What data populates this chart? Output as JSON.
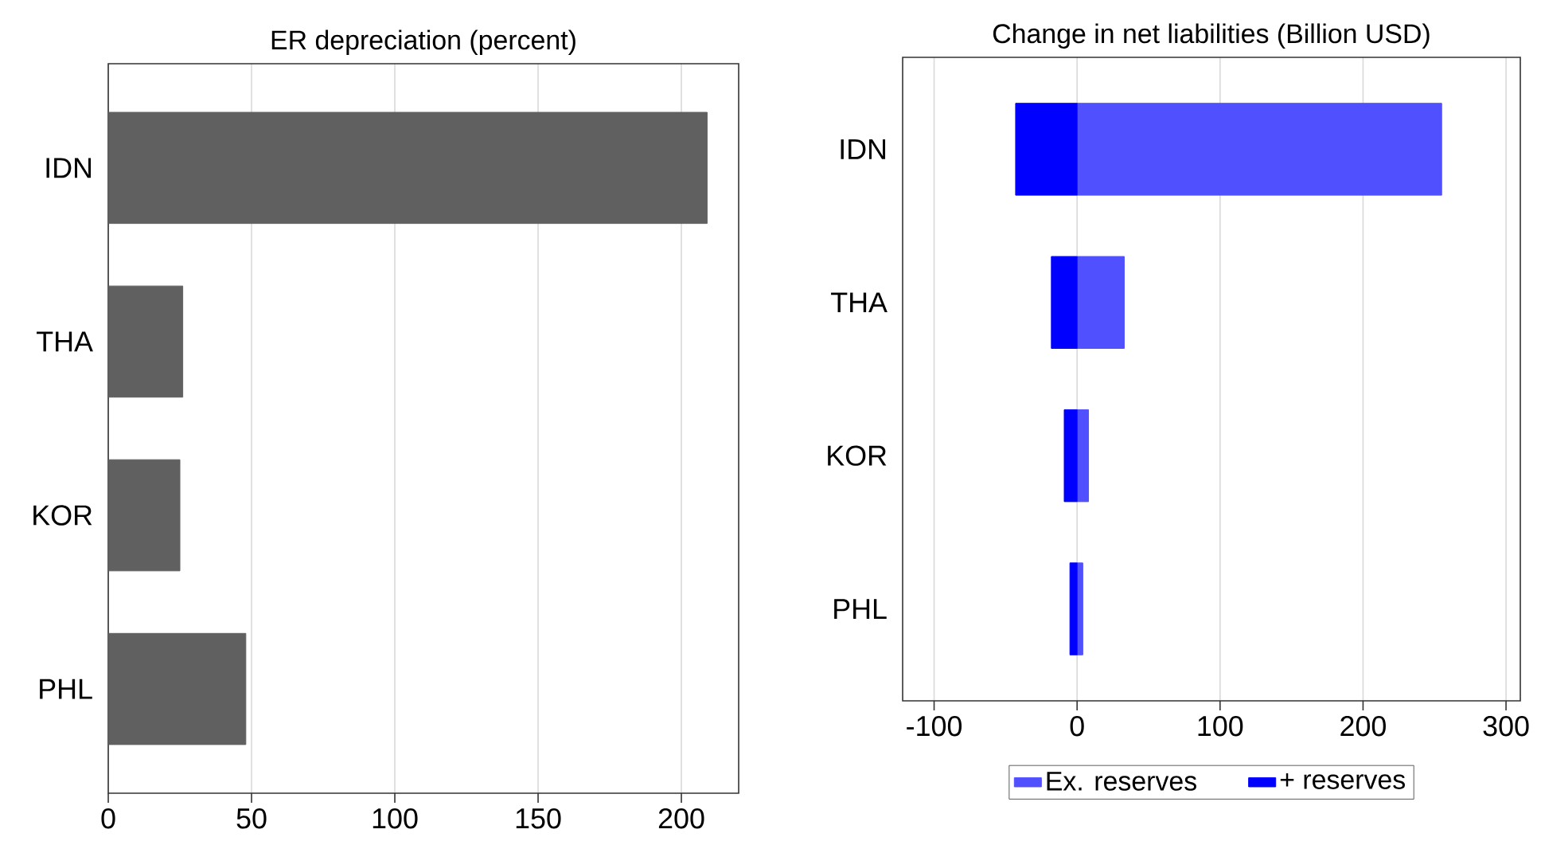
{
  "chart_data": [
    {
      "type": "bar",
      "orientation": "horizontal",
      "title": "ER depreciation (percent)",
      "categories": [
        "IDN",
        "THA",
        "KOR",
        "PHL"
      ],
      "values": [
        209,
        26,
        25,
        48
      ],
      "color": "#606060",
      "xlim": [
        0,
        220
      ],
      "xticks": [
        0,
        50,
        100,
        150,
        200
      ],
      "grid": "x"
    },
    {
      "type": "bar",
      "orientation": "horizontal",
      "stacked": true,
      "title": "Change in net liabilities (Billion USD)",
      "categories": [
        "IDN",
        "THA",
        "KOR",
        "PHL"
      ],
      "series": [
        {
          "name": "Ex. reserves",
          "color": "#5050ff",
          "values": [
            255,
            33,
            8,
            4
          ]
        },
        {
          "name": "+ reserves",
          "color": "#0000ff",
          "values": [
            -43,
            -18,
            -9,
            -5
          ]
        }
      ],
      "xlim": [
        -122,
        310
      ],
      "xticks": [
        -100,
        0,
        100,
        200,
        300
      ],
      "grid": "x",
      "legend": "bottom"
    }
  ]
}
